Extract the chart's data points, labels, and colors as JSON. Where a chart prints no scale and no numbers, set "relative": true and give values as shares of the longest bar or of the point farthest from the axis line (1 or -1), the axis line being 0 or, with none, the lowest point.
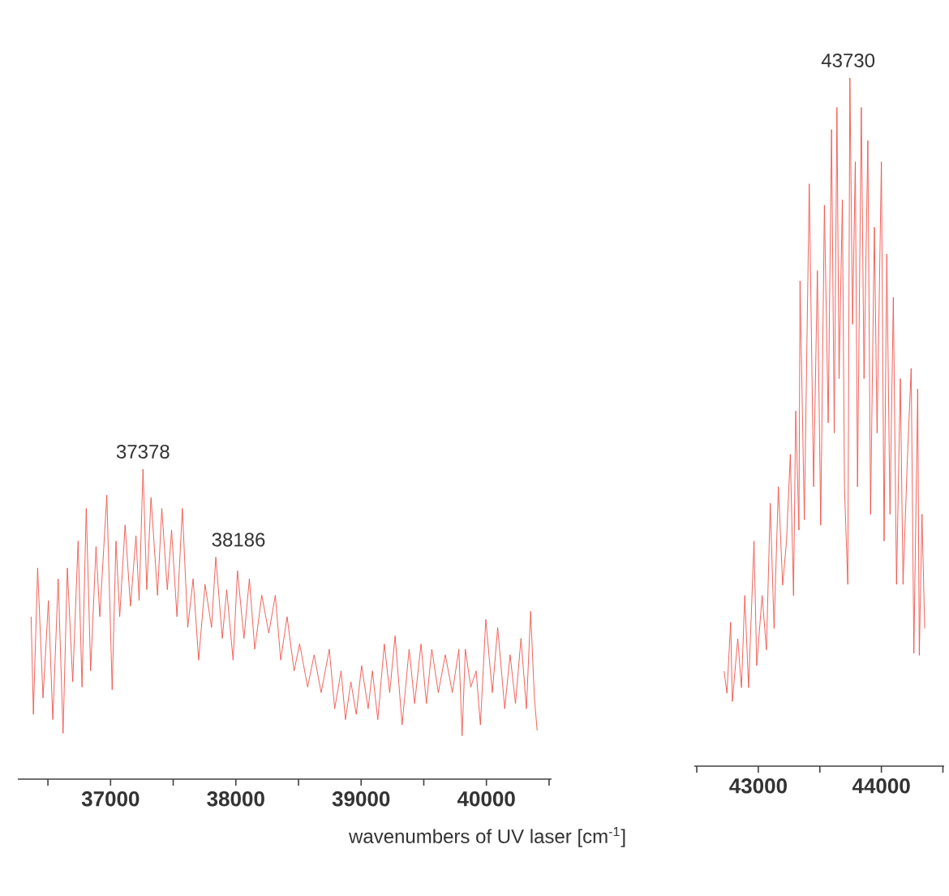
{
  "chart_data": [
    {
      "type": "line",
      "relative": true,
      "xlabel": "wavenumbers of UV laser [cm$^{-1}$]",
      "xlim": [
        36260,
        40520
      ],
      "xticks": [
        {
          "value": 36500,
          "label": null
        },
        37000,
        {
          "value": 37500,
          "label": null
        },
        38000,
        {
          "value": 38500,
          "label": null
        },
        39000,
        {
          "value": 39500,
          "label": null
        },
        40000,
        {
          "value": 40500,
          "label": null
        }
      ],
      "annotations": [
        {
          "text": "37378",
          "x": 37259,
          "y": 1.0
        },
        {
          "text": "38186",
          "x": 37840,
          "y": 0.716
        }
      ],
      "series": [
        {
          "color": "#f0524a",
          "x": [
            36366,
            36384,
            36418,
            36461,
            36504,
            36539,
            36582,
            36621,
            36655,
            36698,
            36741,
            36772,
            36806,
            36841,
            36884,
            36914,
            36970,
            37013,
            37043,
            37073,
            37116,
            37159,
            37203,
            37228,
            37259,
            37289,
            37323,
            37375,
            37409,
            37453,
            37487,
            37530,
            37573,
            37616,
            37659,
            37703,
            37754,
            37806,
            37840,
            37892,
            37927,
            37978,
            38013,
            38065,
            38108,
            38151,
            38207,
            38263,
            38315,
            38358,
            38409,
            38465,
            38509,
            38573,
            38625,
            38681,
            38746,
            38789,
            38840,
            38875,
            38918,
            38961,
            39004,
            39056,
            39090,
            39133,
            39185,
            39228,
            39271,
            39327,
            39383,
            39427,
            39478,
            39521,
            39564,
            39616,
            39672,
            39728,
            39780,
            39806,
            39832,
            39875,
            39918,
            39952,
            39995,
            40047,
            40090,
            40146,
            40189,
            40232,
            40276,
            40319,
            40353,
            40383,
            40405
          ],
          "values": [
            0.524,
            0.209,
            0.681,
            0.262,
            0.576,
            0.192,
            0.646,
            0.148,
            0.681,
            0.314,
            0.768,
            0.297,
            0.873,
            0.349,
            0.75,
            0.524,
            0.916,
            0.288,
            0.768,
            0.524,
            0.82,
            0.558,
            0.785,
            0.576,
            1.0,
            0.611,
            0.908,
            0.593,
            0.873,
            0.611,
            0.803,
            0.524,
            0.873,
            0.489,
            0.646,
            0.384,
            0.628,
            0.489,
            0.716,
            0.454,
            0.611,
            0.384,
            0.672,
            0.454,
            0.646,
            0.419,
            0.593,
            0.471,
            0.593,
            0.384,
            0.524,
            0.349,
            0.436,
            0.297,
            0.401,
            0.279,
            0.419,
            0.227,
            0.349,
            0.192,
            0.314,
            0.209,
            0.366,
            0.227,
            0.349,
            0.192,
            0.436,
            0.279,
            0.462,
            0.175,
            0.419,
            0.244,
            0.436,
            0.244,
            0.419,
            0.279,
            0.401,
            0.279,
            0.419,
            0.14,
            0.419,
            0.297,
            0.349,
            0.175,
            0.515,
            0.279,
            0.489,
            0.227,
            0.401,
            0.244,
            0.454,
            0.227,
            0.541,
            0.262,
            0.157
          ]
        }
      ]
    },
    {
      "type": "line",
      "relative": true,
      "xlim": [
        42480,
        44510
      ],
      "xticks": [
        {
          "value": 42500,
          "label": null
        },
        43000,
        {
          "value": 43500,
          "label": null
        },
        44000,
        {
          "value": 44500,
          "label": null
        }
      ],
      "annotations": [
        {
          "text": "43730",
          "x": 43730,
          "y": 1.0
        }
      ],
      "series": [
        {
          "color": "#f0524a",
          "x": [
            42722,
            42745,
            42775,
            42789,
            42833,
            42863,
            42890,
            42921,
            42965,
            42987,
            43031,
            43066,
            43097,
            43128,
            43163,
            43198,
            43229,
            43260,
            43286,
            43304,
            43330,
            43339,
            43374,
            43414,
            43449,
            43480,
            43507,
            43537,
            43568,
            43595,
            43617,
            43639,
            43656,
            43683,
            43700,
            43727,
            43744,
            43766,
            43788,
            43806,
            43837,
            43859,
            43890,
            43912,
            43943,
            43965,
            44000,
            44022,
            44044,
            44070,
            44097,
            44123,
            44154,
            44176,
            44211,
            44242,
            44264,
            44295,
            44308,
            44330,
            44352
          ],
          "values": [
            0.138,
            0.106,
            0.209,
            0.094,
            0.185,
            0.114,
            0.248,
            0.114,
            0.327,
            0.146,
            0.248,
            0.169,
            0.382,
            0.2,
            0.406,
            0.263,
            0.327,
            0.453,
            0.248,
            0.516,
            0.343,
            0.705,
            0.358,
            0.846,
            0.406,
            0.72,
            0.35,
            0.815,
            0.499,
            0.925,
            0.484,
            0.957,
            0.563,
            0.823,
            0.406,
            0.264,
            1.0,
            0.642,
            0.878,
            0.406,
            0.957,
            0.563,
            0.909,
            0.366,
            0.783,
            0.484,
            0.878,
            0.327,
            0.744,
            0.366,
            0.681,
            0.264,
            0.563,
            0.264,
            0.445,
            0.578,
            0.164,
            0.548,
            0.161,
            0.366,
            0.2
          ]
        }
      ]
    }
  ]
}
